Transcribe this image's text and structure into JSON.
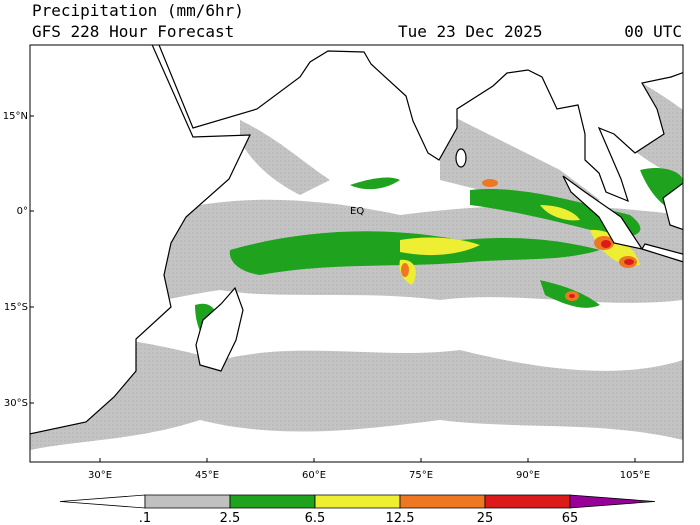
{
  "header": {
    "title": "Precipitation (mm/6hr)",
    "subtitle": "GFS 228 Hour Forecast",
    "date": "Tue 23 Dec 2025",
    "time": "00 UTC"
  },
  "map": {
    "lat_labels": [
      "15°N",
      "0°",
      "15°S",
      "30°S"
    ],
    "lon_labels": [
      "30°E",
      "45°E",
      "60°E",
      "75°E",
      "90°E",
      "105°E"
    ],
    "equator_label": "EQ"
  },
  "colorbar": {
    "tick_labels": [
      ".1",
      "2.5",
      "6.5",
      "12.5",
      "25",
      "65"
    ],
    "colors": [
      "#ffffff",
      "#c0c0c0",
      "#1fa31f",
      "#eeee33",
      "#ee7722",
      "#dd1a1a",
      "#990099"
    ]
  }
}
